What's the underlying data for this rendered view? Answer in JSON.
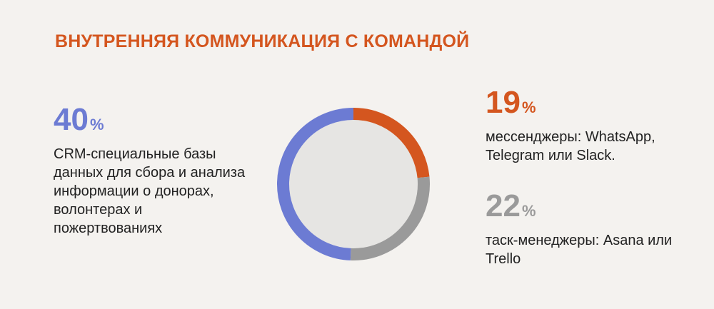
{
  "chart_data": {
    "type": "donut",
    "title": "ВНУТРЕННЯЯ КОММУНИКАЦИЯ С КОМАНДОЙ",
    "categories": [
      "мессенджеры: WhatsApp, Telegram или Slack.",
      "таск-менеджеры: Asana или Trello",
      "CRM-специальные базы данных для сбора и анализа информации о донорах, волонтерах и пожертвованиях"
    ],
    "values": [
      19,
      22,
      40
    ],
    "unit": "%",
    "colors": [
      "#d4561f",
      "#9a9a9a",
      "#6c7bd3"
    ]
  }
}
